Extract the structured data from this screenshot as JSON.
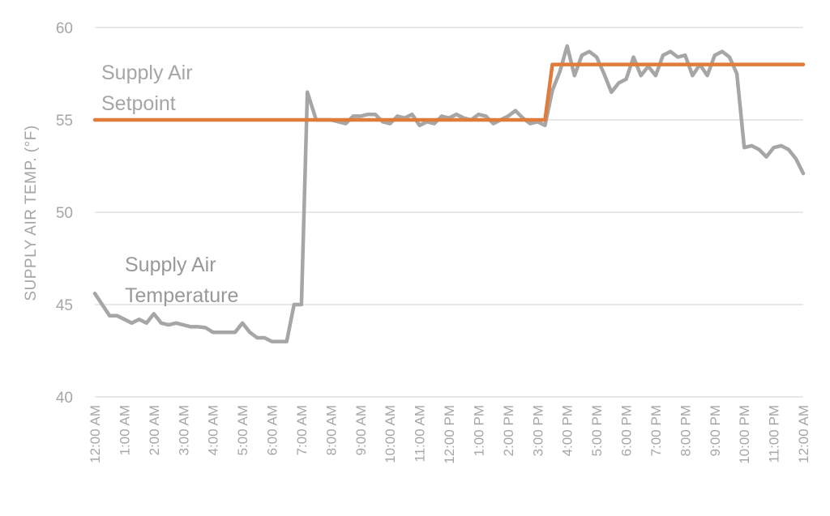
{
  "chart_data": {
    "type": "line",
    "ylabel": "SUPPLY AIR TEMP. (°F)",
    "xlabel": "",
    "ylim": [
      40,
      60
    ],
    "yticks": [
      40,
      45,
      50,
      55,
      60
    ],
    "grid": "horizontal",
    "legend": "none",
    "x_tick_labels": [
      "12:00 AM",
      "1:00 AM",
      "2:00 AM",
      "3:00 AM",
      "4:00 AM",
      "5:00 AM",
      "6:00 AM",
      "7:00 AM",
      "8:00 AM",
      "9:00 AM",
      "10:00 AM",
      "11:00 AM",
      "12:00 PM",
      "1:00 PM",
      "2:00 PM",
      "3:00 PM",
      "4:00 PM",
      "5:00 PM",
      "6:00 PM",
      "7:00 PM",
      "8:00 PM",
      "9:00 PM",
      "10:00 PM",
      "11:00 PM",
      "12:00 AM"
    ],
    "annotations": [
      {
        "lines": [
          "Supply Air",
          "Setpoint"
        ],
        "series": "Supply Air Setpoint"
      },
      {
        "lines": [
          "Supply Air",
          "Temperature"
        ],
        "series": "Supply Air Temperature"
      }
    ],
    "series": [
      {
        "name": "Supply Air Temperature",
        "color": "#a6a6a6",
        "points": [
          [
            0.0,
            45.6
          ],
          [
            0.25,
            45.0
          ],
          [
            0.5,
            44.4
          ],
          [
            0.75,
            44.4
          ],
          [
            1.0,
            44.2
          ],
          [
            1.25,
            44.0
          ],
          [
            1.5,
            44.2
          ],
          [
            1.75,
            44.0
          ],
          [
            2.0,
            44.5
          ],
          [
            2.25,
            44.0
          ],
          [
            2.5,
            43.9
          ],
          [
            2.75,
            44.0
          ],
          [
            3.0,
            43.9
          ],
          [
            3.25,
            43.8
          ],
          [
            3.5,
            43.8
          ],
          [
            3.75,
            43.75
          ],
          [
            4.0,
            43.5
          ],
          [
            4.25,
            43.5
          ],
          [
            4.5,
            43.5
          ],
          [
            4.75,
            43.5
          ],
          [
            5.0,
            44.0
          ],
          [
            5.25,
            43.5
          ],
          [
            5.5,
            43.2
          ],
          [
            5.75,
            43.2
          ],
          [
            6.0,
            43.0
          ],
          [
            6.25,
            43.0
          ],
          [
            6.5,
            43.0
          ],
          [
            6.75,
            45.0
          ],
          [
            7.0,
            45.0
          ],
          [
            7.2,
            56.5
          ],
          [
            7.5,
            55.0
          ],
          [
            7.75,
            55.0
          ],
          [
            8.0,
            55.0
          ],
          [
            8.25,
            54.9
          ],
          [
            8.5,
            54.8
          ],
          [
            8.75,
            55.2
          ],
          [
            9.0,
            55.2
          ],
          [
            9.25,
            55.3
          ],
          [
            9.5,
            55.3
          ],
          [
            9.75,
            54.9
          ],
          [
            10.0,
            54.8
          ],
          [
            10.25,
            55.2
          ],
          [
            10.5,
            55.1
          ],
          [
            10.75,
            55.3
          ],
          [
            11.0,
            54.7
          ],
          [
            11.25,
            54.9
          ],
          [
            11.5,
            54.8
          ],
          [
            11.75,
            55.2
          ],
          [
            12.0,
            55.1
          ],
          [
            12.25,
            55.3
          ],
          [
            12.5,
            55.1
          ],
          [
            12.75,
            55.0
          ],
          [
            13.0,
            55.3
          ],
          [
            13.25,
            55.2
          ],
          [
            13.5,
            54.8
          ],
          [
            13.75,
            55.0
          ],
          [
            14.0,
            55.2
          ],
          [
            14.25,
            55.5
          ],
          [
            14.5,
            55.1
          ],
          [
            14.75,
            54.8
          ],
          [
            15.0,
            54.9
          ],
          [
            15.25,
            54.7
          ],
          [
            15.5,
            56.6
          ],
          [
            15.75,
            57.6
          ],
          [
            16.0,
            59.0
          ],
          [
            16.25,
            57.4
          ],
          [
            16.5,
            58.5
          ],
          [
            16.75,
            58.7
          ],
          [
            17.0,
            58.4
          ],
          [
            17.25,
            57.5
          ],
          [
            17.5,
            56.5
          ],
          [
            17.75,
            57.0
          ],
          [
            18.0,
            57.2
          ],
          [
            18.25,
            58.4
          ],
          [
            18.5,
            57.4
          ],
          [
            18.75,
            57.9
          ],
          [
            19.0,
            57.4
          ],
          [
            19.25,
            58.5
          ],
          [
            19.5,
            58.7
          ],
          [
            19.75,
            58.4
          ],
          [
            20.0,
            58.5
          ],
          [
            20.25,
            57.4
          ],
          [
            20.5,
            58.0
          ],
          [
            20.75,
            57.4
          ],
          [
            21.0,
            58.5
          ],
          [
            21.25,
            58.7
          ],
          [
            21.5,
            58.4
          ],
          [
            21.75,
            57.5
          ],
          [
            22.0,
            53.5
          ],
          [
            22.25,
            53.6
          ],
          [
            22.5,
            53.4
          ],
          [
            22.75,
            53.0
          ],
          [
            23.0,
            53.5
          ],
          [
            23.25,
            53.6
          ],
          [
            23.5,
            53.4
          ],
          [
            23.75,
            52.9
          ],
          [
            24.0,
            52.1
          ]
        ]
      },
      {
        "name": "Supply Air Setpoint",
        "color": "#e07b39",
        "points": [
          [
            0.0,
            55
          ],
          [
            15.25,
            55
          ],
          [
            15.5,
            58
          ],
          [
            24.0,
            58
          ]
        ]
      }
    ]
  }
}
